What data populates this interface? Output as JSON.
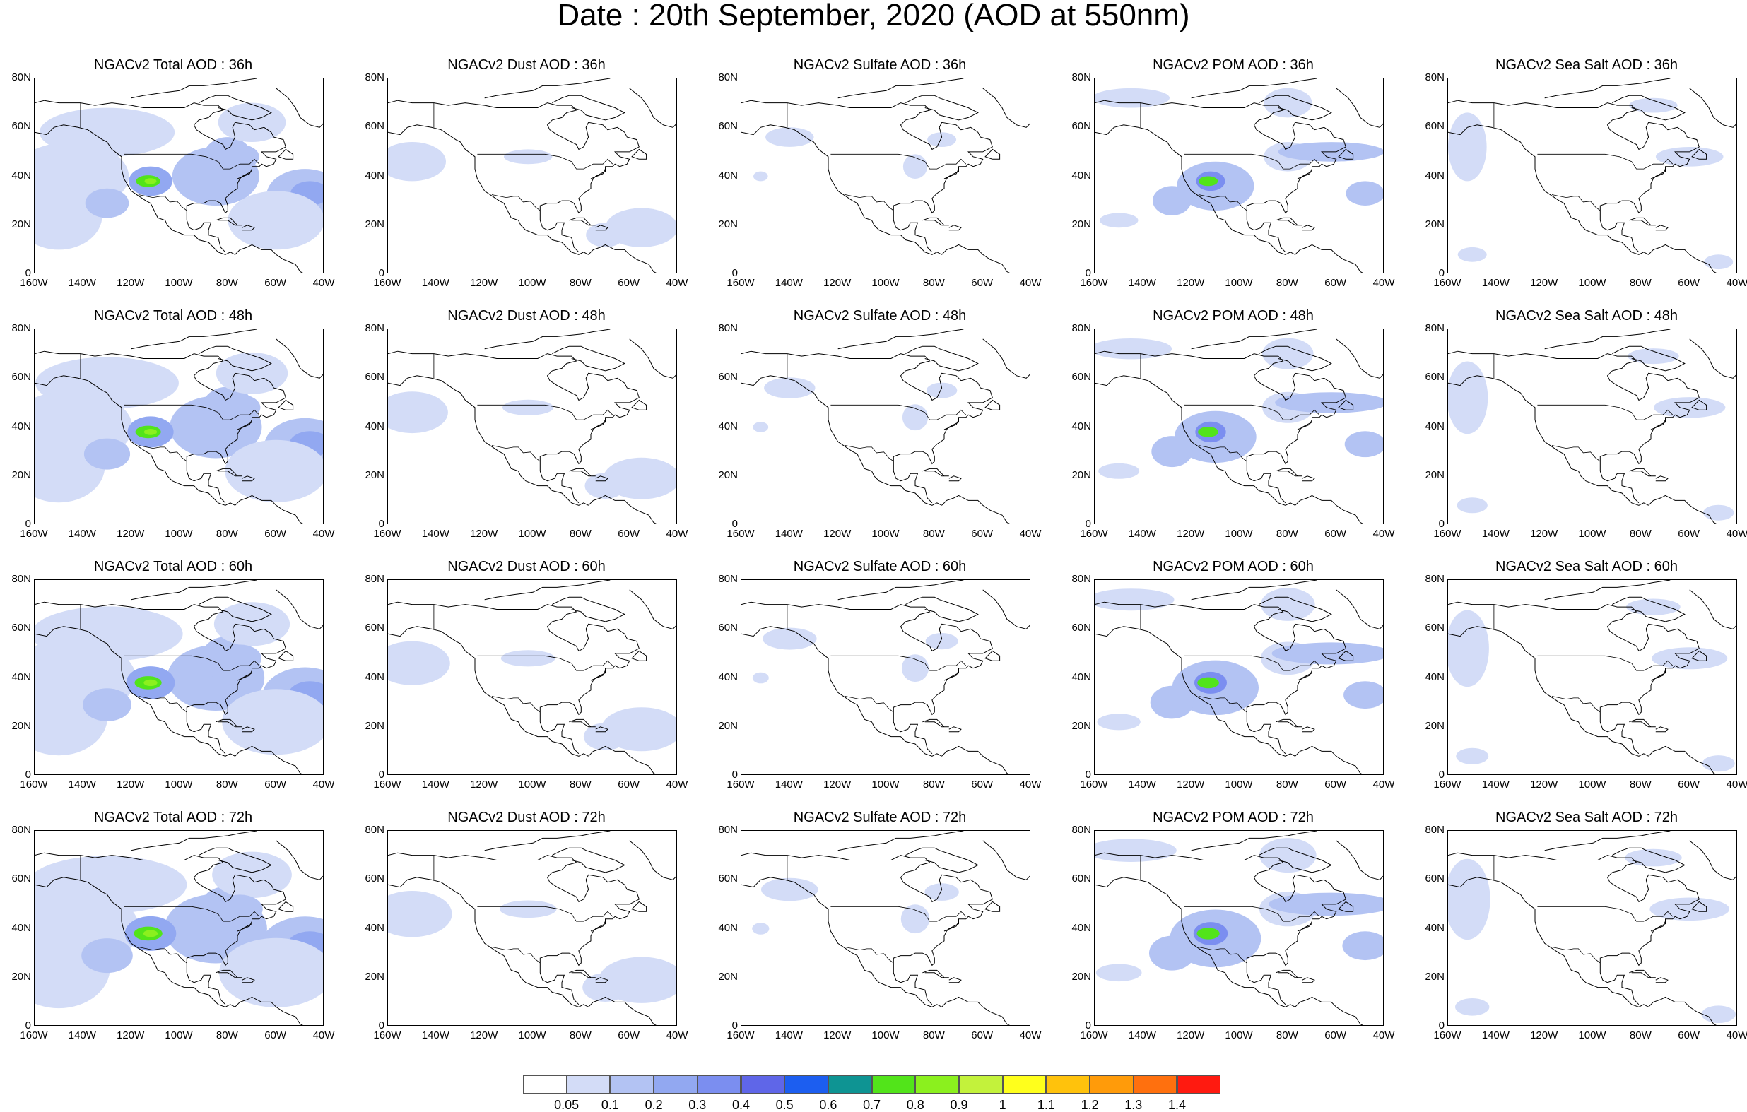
{
  "title": "Date : 20th September, 2020 (AOD at 550nm)",
  "axes": {
    "lat_labels": [
      "80N",
      "60N",
      "40N",
      "20N",
      "0"
    ],
    "lon_labels": [
      "160W",
      "140W",
      "120W",
      "100W",
      "80W",
      "60W",
      "40W"
    ]
  },
  "map_extent": {
    "lon_min": -160,
    "lon_max": -40,
    "lat_min": 0,
    "lat_max": 80
  },
  "panels": [
    [
      "NGACv2 Total AOD : 36h",
      "NGACv2 Dust AOD : 36h",
      "NGACv2 Sulfate AOD : 36h",
      "NGACv2 POM AOD : 36h",
      "NGACv2 Sea Salt AOD : 36h"
    ],
    [
      "NGACv2 Total AOD : 48h",
      "NGACv2 Dust AOD : 48h",
      "NGACv2 Sulfate AOD : 48h",
      "NGACv2 POM AOD : 48h",
      "NGACv2 Sea Salt AOD : 48h"
    ],
    [
      "NGACv2 Total AOD : 60h",
      "NGACv2 Dust AOD : 60h",
      "NGACv2 Sulfate AOD : 60h",
      "NGACv2 POM AOD : 60h",
      "NGACv2 Sea Salt AOD : 60h"
    ],
    [
      "NGACv2 Total AOD : 72h",
      "NGACv2 Dust AOD : 72h",
      "NGACv2 Sulfate AOD : 72h",
      "NGACv2 POM AOD : 72h",
      "NGACv2 Sea Salt  AOD : 72h"
    ]
  ],
  "colorbar": {
    "labels": [
      "0.05",
      "0.1",
      "0.2",
      "0.3",
      "0.4",
      "0.5",
      "0.6",
      "0.7",
      "0.8",
      "0.9",
      "1",
      "1.1",
      "1.2",
      "1.3",
      "1.4"
    ],
    "colors": [
      "#ffffff",
      "#d3dcf7",
      "#b3c3f3",
      "#92a8f1",
      "#7b8ef0",
      "#5f66e8",
      "#1c5ef0",
      "#0e9493",
      "#52e41a",
      "#8bf01e",
      "#c3f23b",
      "#ffff1c",
      "#ffc20c",
      "#ff9b0a",
      "#ff700e",
      "#ff1a10"
    ]
  }
}
